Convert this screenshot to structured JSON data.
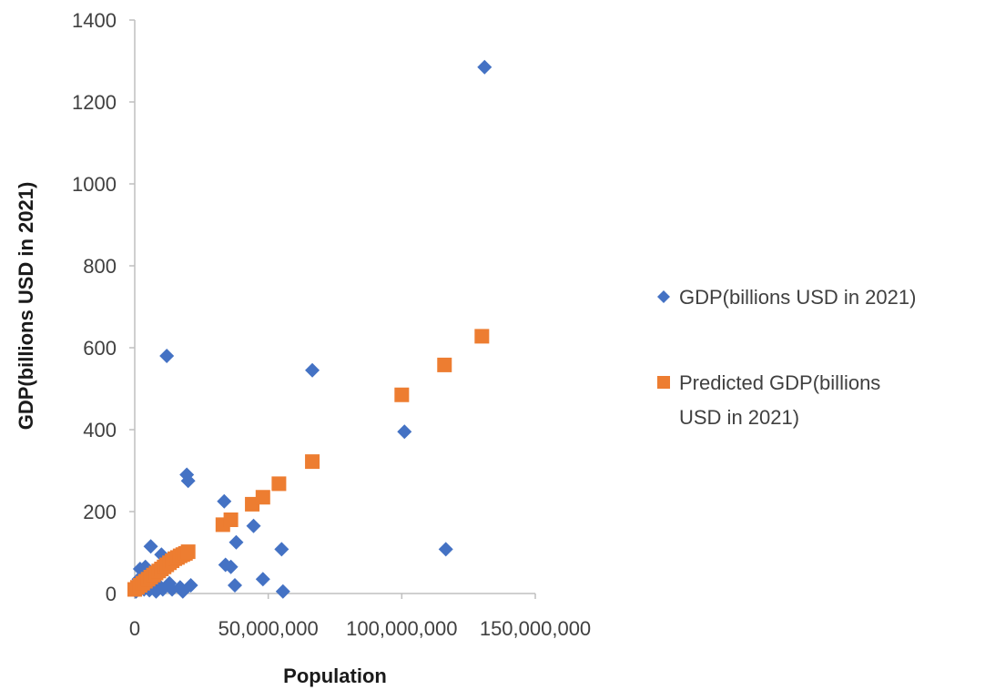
{
  "chart_data": {
    "type": "scatter",
    "title": "",
    "xlabel": "Population",
    "ylabel": "GDP(billions USD in 2021)",
    "xlim": [
      0,
      150000000
    ],
    "ylim": [
      0,
      1400
    ],
    "x_ticks": [
      0,
      50000000,
      100000000,
      150000000
    ],
    "x_tick_labels": [
      "0",
      "50,000,000",
      "100,000,000",
      "150,000,000"
    ],
    "y_ticks": [
      0,
      200,
      400,
      600,
      800,
      1000,
      1200,
      1400
    ],
    "y_tick_labels": [
      "0",
      "200",
      "400",
      "600",
      "800",
      "1000",
      "1200",
      "1400"
    ],
    "grid": false,
    "legend_position": "right",
    "series": [
      {
        "name": "GDP(billions USD in 2021)",
        "marker": "diamond",
        "color": "#4472C4",
        "points": [
          [
            500000,
            5
          ],
          [
            1000000,
            20
          ],
          [
            1500000,
            35
          ],
          [
            2000000,
            60
          ],
          [
            2500000,
            15
          ],
          [
            3000000,
            45
          ],
          [
            3500000,
            10
          ],
          [
            4000000,
            65
          ],
          [
            4500000,
            30
          ],
          [
            5000000,
            50
          ],
          [
            5500000,
            8
          ],
          [
            6000000,
            25
          ],
          [
            6000000,
            115
          ],
          [
            7000000,
            40
          ],
          [
            8000000,
            5
          ],
          [
            9000000,
            20
          ],
          [
            10000000,
            95
          ],
          [
            10500000,
            10
          ],
          [
            11000000,
            60
          ],
          [
            12000000,
            580
          ],
          [
            13000000,
            25
          ],
          [
            14000000,
            10
          ],
          [
            17000000,
            15
          ],
          [
            18000000,
            5
          ],
          [
            19500000,
            290
          ],
          [
            20000000,
            275
          ],
          [
            21000000,
            20
          ],
          [
            33500000,
            225
          ],
          [
            34000000,
            70
          ],
          [
            36000000,
            65
          ],
          [
            37500000,
            20
          ],
          [
            38000000,
            125
          ],
          [
            44500000,
            165
          ],
          [
            48000000,
            35
          ],
          [
            55000000,
            108
          ],
          [
            55500000,
            5
          ],
          [
            66500000,
            545
          ],
          [
            101000000,
            395
          ],
          [
            116500000,
            108
          ],
          [
            131000000,
            1285
          ]
        ]
      },
      {
        "name": "Predicted GDP(billions USD in 2021)",
        "marker": "square",
        "color": "#ED7D31",
        "points": [
          [
            0,
            10
          ],
          [
            1000000,
            15
          ],
          [
            2000000,
            20
          ],
          [
            3000000,
            25
          ],
          [
            4000000,
            30
          ],
          [
            5000000,
            35
          ],
          [
            6000000,
            40
          ],
          [
            7000000,
            45
          ],
          [
            8000000,
            50
          ],
          [
            9000000,
            55
          ],
          [
            10000000,
            60
          ],
          [
            11000000,
            65
          ],
          [
            12000000,
            70
          ],
          [
            13000000,
            75
          ],
          [
            14000000,
            80
          ],
          [
            15000000,
            85
          ],
          [
            16000000,
            88
          ],
          [
            17000000,
            92
          ],
          [
            18000000,
            95
          ],
          [
            19000000,
            98
          ],
          [
            20000000,
            102
          ],
          [
            33000000,
            168
          ],
          [
            36000000,
            180
          ],
          [
            44000000,
            218
          ],
          [
            48000000,
            235
          ],
          [
            54000000,
            268
          ],
          [
            66500000,
            322
          ],
          [
            100000000,
            485
          ],
          [
            116000000,
            558
          ],
          [
            130000000,
            628
          ]
        ]
      }
    ]
  }
}
